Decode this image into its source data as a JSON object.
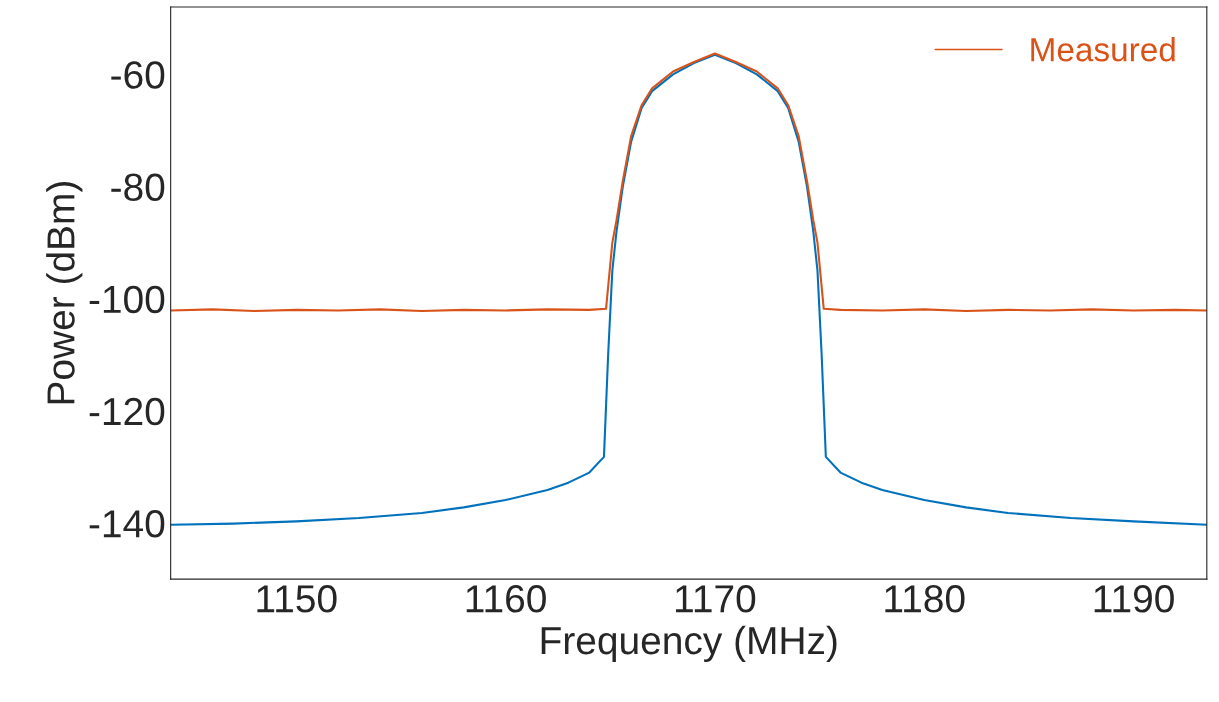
{
  "chart_data": {
    "type": "line",
    "xlabel": "Frequency (MHz)",
    "ylabel": "Power (dBm)",
    "xlim": [
      1144,
      1193.5
    ],
    "ylim": [
      -150,
      -48
    ],
    "xticks": [
      1150,
      1160,
      1170,
      1180,
      1190
    ],
    "yticks": [
      -140,
      -120,
      -100,
      -80,
      -60
    ],
    "grid": false,
    "legend": "top right",
    "marker": "none",
    "line_style": "solid",
    "series": [
      {
        "color": "#0072bd",
        "x": [
          1144,
          1147,
          1150,
          1153,
          1156,
          1158,
          1160,
          1162,
          1163,
          1164,
          1164.7,
          1164.9,
          1165.1,
          1165.3,
          1165.6,
          1166,
          1166.5,
          1167,
          1168,
          1169,
          1170,
          1171,
          1172,
          1173,
          1173.5,
          1174,
          1174.4,
          1174.7,
          1174.9,
          1175.1,
          1175.3,
          1176,
          1177,
          1178,
          1180,
          1182,
          1184,
          1187,
          1190,
          1193.5
        ],
        "values": [
          -140.3,
          -140.1,
          -139.7,
          -139.1,
          -138.2,
          -137.2,
          -135.9,
          -134.1,
          -132.8,
          -131,
          -128.2,
          -110,
          -95,
          -88,
          -80,
          -72,
          -66,
          -63,
          -60,
          -58,
          -56.5,
          -58,
          -60,
          -63,
          -66,
          -72,
          -80,
          -88,
          -95,
          -110,
          -128.2,
          -131,
          -132.8,
          -134.1,
          -135.9,
          -137.2,
          -138.2,
          -139.1,
          -139.7,
          -140.3
        ]
      },
      {
        "name": "Measured",
        "color": "#d95319",
        "x": [
          1144,
          1146,
          1148,
          1150,
          1152,
          1154,
          1156,
          1158,
          1160,
          1162,
          1164,
          1164.8,
          1165.1,
          1165.3,
          1165.6,
          1166,
          1166.5,
          1167,
          1168,
          1169,
          1170,
          1171,
          1172,
          1173,
          1173.5,
          1174,
          1174.4,
          1174.7,
          1174.9,
          1175.2,
          1176,
          1178,
          1180,
          1182,
          1184,
          1186,
          1188,
          1190,
          1192,
          1193.5
        ],
        "values": [
          -102.1,
          -101.9,
          -102.2,
          -102,
          -102.1,
          -101.9,
          -102.2,
          -102,
          -102.1,
          -101.9,
          -102,
          -101.8,
          -90,
          -86,
          -79,
          -71,
          -65.5,
          -62.5,
          -59.5,
          -57.8,
          -56.3,
          -57.8,
          -59.5,
          -62.5,
          -65.5,
          -71,
          -79,
          -86,
          -90,
          -101.8,
          -102,
          -102.1,
          -101.9,
          -102.2,
          -102,
          -102.1,
          -101.9,
          -102.1,
          -102,
          -102.1
        ]
      }
    ]
  }
}
